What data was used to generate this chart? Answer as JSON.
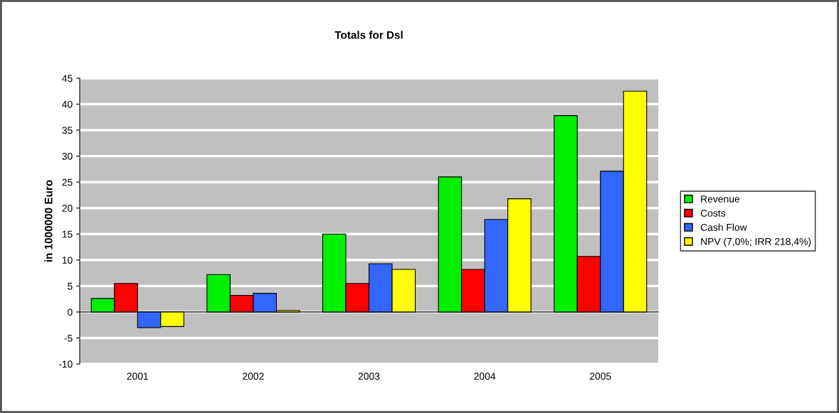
{
  "chart_data": {
    "type": "bar",
    "title": "Totals for Dsl",
    "ylabel": "in 1000000 Euro",
    "categories": [
      "2001",
      "2002",
      "2003",
      "2004",
      "2005"
    ],
    "series": [
      {
        "name": "Revenue",
        "color": "#00ee00",
        "values": [
          2.6,
          7.2,
          15.0,
          26.0,
          37.8
        ]
      },
      {
        "name": "Costs",
        "color": "#ff0000",
        "values": [
          5.5,
          3.2,
          5.5,
          8.2,
          10.7
        ]
      },
      {
        "name": "Cash Flow",
        "color": "#3366ff",
        "values": [
          -3.0,
          3.6,
          9.3,
          17.8,
          27.1
        ]
      },
      {
        "name": "NPV (7,0%; IRR 218,4%)",
        "color": "#ffff00",
        "values": [
          -2.8,
          0.3,
          8.2,
          21.8,
          42.5
        ]
      }
    ],
    "ylim": [
      -10,
      45
    ],
    "yticks": [
      -10,
      -5,
      0,
      5,
      10,
      15,
      20,
      25,
      30,
      35,
      40,
      45
    ],
    "grid": "y",
    "legend": "right"
  }
}
